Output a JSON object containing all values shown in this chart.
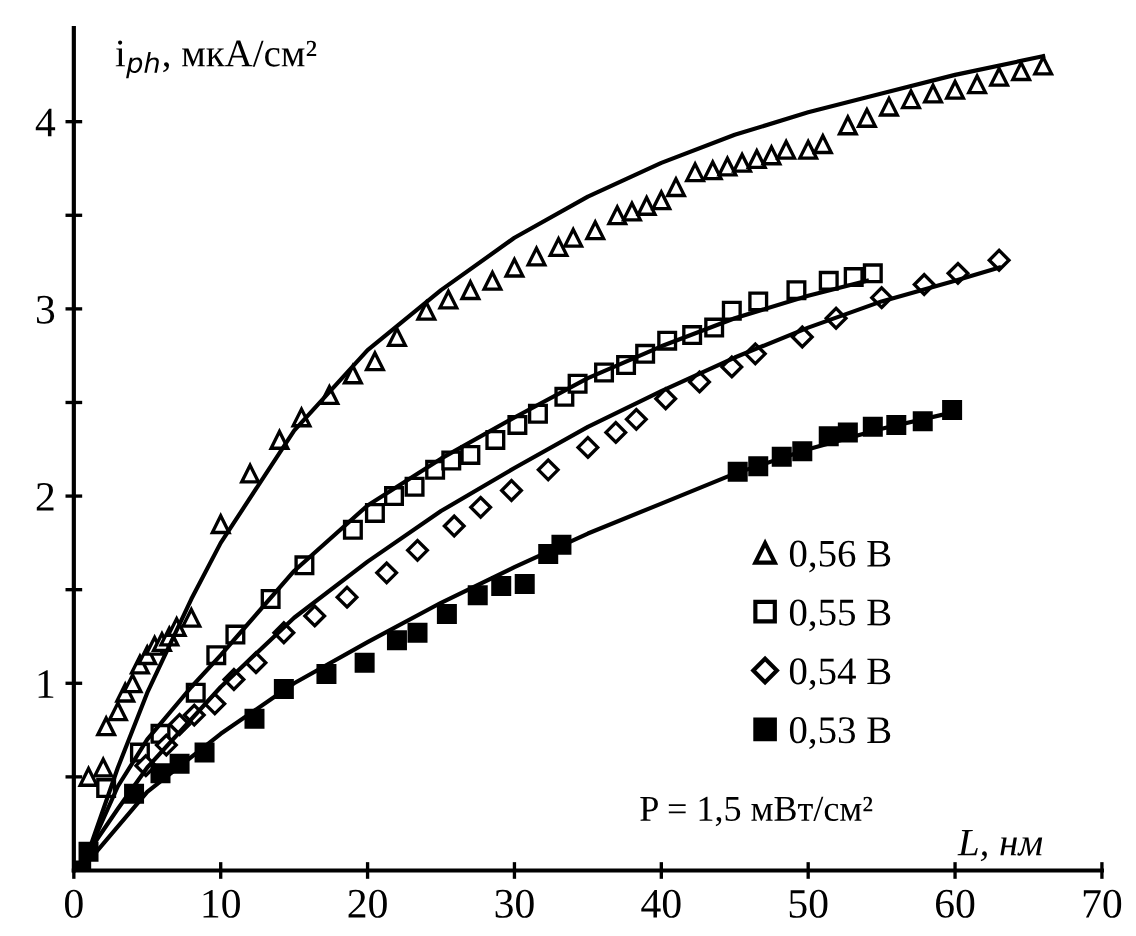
{
  "chart_data": {
    "type": "scatter",
    "xlabel": "L, нм",
    "ylabel": "i$_{ph}$, мкА/см²",
    "annotations": [
      "P = 1,5 мВт/см²"
    ],
    "xlim": [
      0,
      70
    ],
    "xticks": [
      0,
      10,
      20,
      30,
      40,
      50,
      60,
      70
    ],
    "ylim": [
      0,
      4.5
    ],
    "yticks": [
      {
        "value": 0.5,
        "label": null
      },
      1,
      {
        "value": 1.5,
        "label": null
      },
      2,
      {
        "value": 2.5,
        "label": null
      },
      3,
      {
        "value": 3.5,
        "label": null
      },
      4
    ],
    "grid": false,
    "legend": "bottom right",
    "series": [
      {
        "name": "0,56 В",
        "color": "#000000",
        "marker": "triangle",
        "x": [
          1,
          2,
          2.2,
          3,
          3.5,
          4,
          4.5,
          5,
          5.5,
          6,
          6.5,
          7,
          8,
          10,
          12,
          14,
          15.5,
          17.4,
          19,
          20.5,
          22,
          24,
          25.5,
          27,
          28.5,
          30,
          31.5,
          33,
          34,
          35.5,
          37,
          38,
          39,
          40,
          41,
          42.3,
          43.5,
          44.5,
          45.5,
          46.5,
          47.5,
          48.5,
          50,
          51,
          52.7,
          54,
          55.5,
          57,
          58.5,
          60,
          61.5,
          63,
          64.5,
          66
        ],
        "values": [
          0.5,
          0.55,
          0.77,
          0.85,
          0.95,
          1.0,
          1.1,
          1.15,
          1.2,
          1.22,
          1.25,
          1.3,
          1.35,
          1.85,
          2.12,
          2.3,
          2.42,
          2.54,
          2.65,
          2.72,
          2.85,
          2.99,
          3.05,
          3.1,
          3.15,
          3.22,
          3.28,
          3.33,
          3.38,
          3.42,
          3.5,
          3.52,
          3.55,
          3.58,
          3.65,
          3.73,
          3.74,
          3.76,
          3.78,
          3.8,
          3.82,
          3.85,
          3.85,
          3.88,
          3.98,
          4.02,
          4.08,
          4.12,
          4.15,
          4.17,
          4.2,
          4.24,
          4.27,
          4.3
        ]
      },
      {
        "name": "0,55 В",
        "color": "#000000",
        "marker": "square",
        "x": [
          2.2,
          4.5,
          5.9,
          8.3,
          9.7,
          11,
          13.4,
          15.7,
          19,
          20.5,
          21.8,
          23.2,
          24.6,
          25.7,
          27,
          28.7,
          30.2,
          31.6,
          33.4,
          34.3,
          36.1,
          37.6,
          38.9,
          40.4,
          42.1,
          43.6,
          44.8,
          46.6,
          49.2,
          51.4,
          53.1,
          54.4
        ],
        "values": [
          0.44,
          0.63,
          0.73,
          0.95,
          1.15,
          1.26,
          1.45,
          1.63,
          1.82,
          1.91,
          2.0,
          2.05,
          2.14,
          2.19,
          2.22,
          2.3,
          2.38,
          2.44,
          2.53,
          2.6,
          2.66,
          2.7,
          2.76,
          2.83,
          2.86,
          2.9,
          2.99,
          3.04,
          3.1,
          3.15,
          3.17,
          3.19
        ]
      },
      {
        "name": "0,54 В",
        "color": "#000000",
        "marker": "diamond",
        "x": [
          4.9,
          6.3,
          7.2,
          8.2,
          9.6,
          10.9,
          12.4,
          14.3,
          16.4,
          18.6,
          21.3,
          23.4,
          25.9,
          27.7,
          29.8,
          32.3,
          35,
          36.9,
          38.3,
          40.3,
          42.6,
          44.8,
          46.4,
          49.6,
          51.9,
          55,
          57.9,
          60.2,
          63
        ],
        "values": [
          0.56,
          0.67,
          0.78,
          0.83,
          0.89,
          1.02,
          1.11,
          1.27,
          1.36,
          1.46,
          1.59,
          1.71,
          1.84,
          1.94,
          2.03,
          2.14,
          2.26,
          2.34,
          2.41,
          2.52,
          2.61,
          2.69,
          2.76,
          2.85,
          2.95,
          3.06,
          3.13,
          3.19,
          3.26
        ]
      },
      {
        "name": "0,53 В",
        "color": "#000000",
        "marker": "square",
        "x": [
          0.5,
          1,
          4.1,
          5.9,
          7.2,
          8.9,
          12.3,
          14.3,
          17.2,
          19.8,
          22,
          23.4,
          25.4,
          27.5,
          29.1,
          30.7,
          32.3,
          33.2,
          45.2,
          46.6,
          48.2,
          49.6,
          51.4,
          52.7,
          54.4,
          56,
          57.8,
          59.8
        ],
        "values": [
          0.0,
          0.1,
          0.41,
          0.52,
          0.57,
          0.63,
          0.81,
          0.97,
          1.05,
          1.11,
          1.23,
          1.27,
          1.37,
          1.47,
          1.52,
          1.53,
          1.69,
          1.74,
          2.13,
          2.16,
          2.21,
          2.24,
          2.32,
          2.34,
          2.37,
          2.38,
          2.4,
          2.46
        ]
      },
      {
        "type": "line",
        "color": "#000000",
        "x": [
          1,
          3,
          5,
          8,
          10,
          15,
          20,
          25,
          30,
          35,
          40,
          45,
          50,
          55,
          60,
          66
        ],
        "values": [
          0.1,
          0.55,
          0.95,
          1.45,
          1.75,
          2.35,
          2.78,
          3.1,
          3.38,
          3.6,
          3.78,
          3.93,
          4.05,
          4.15,
          4.25,
          4.35
        ]
      },
      {
        "type": "line",
        "color": "#000000",
        "x": [
          1,
          3,
          5,
          8,
          10,
          15,
          20,
          25,
          30,
          35,
          40,
          45,
          50,
          54
        ],
        "values": [
          0.1,
          0.45,
          0.7,
          0.98,
          1.15,
          1.6,
          1.95,
          2.2,
          2.42,
          2.63,
          2.8,
          2.95,
          3.07,
          3.15
        ]
      },
      {
        "type": "line",
        "color": "#000000",
        "x": [
          1,
          3,
          5,
          10,
          15,
          20,
          25,
          30,
          35,
          40,
          45,
          50,
          55,
          60,
          63
        ],
        "values": [
          0.1,
          0.33,
          0.55,
          0.98,
          1.35,
          1.65,
          1.92,
          2.15,
          2.37,
          2.56,
          2.74,
          2.9,
          3.04,
          3.15,
          3.22
        ]
      },
      {
        "type": "line",
        "color": "#000000",
        "x": [
          1,
          5,
          10,
          15,
          20,
          25,
          30,
          35,
          40,
          45,
          50,
          55,
          60
        ],
        "values": [
          0.05,
          0.42,
          0.73,
          1.0,
          1.22,
          1.43,
          1.62,
          1.8,
          1.96,
          2.12,
          2.25,
          2.36,
          2.45
        ]
      }
    ]
  }
}
